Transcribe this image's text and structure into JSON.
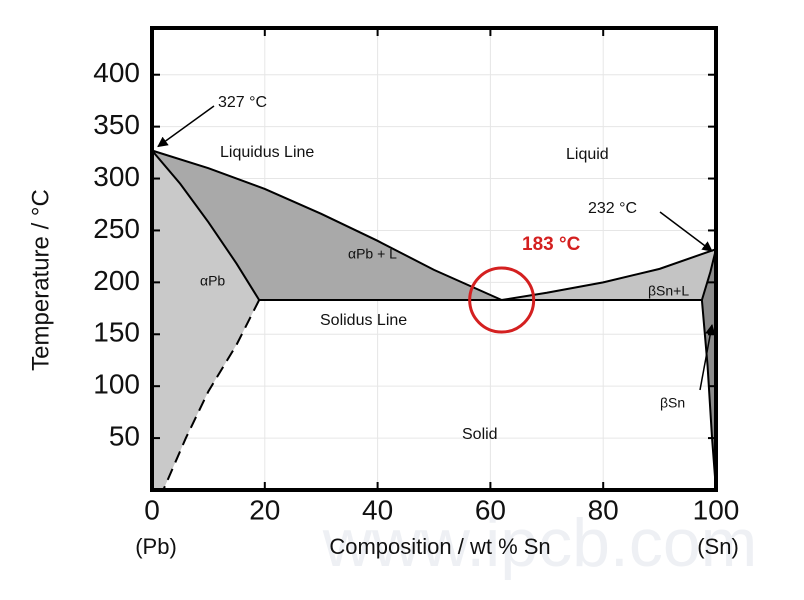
{
  "chart_data": {
    "type": "phase-diagram",
    "x_label": "Composition / wt % Sn",
    "y_label": "Temperature / °C",
    "x_end_labels": [
      "(Pb)",
      "(Sn)"
    ],
    "xlim": [
      0,
      100
    ],
    "xticks": [
      0,
      20,
      40,
      60,
      80,
      100
    ],
    "ylim": [
      0,
      445
    ],
    "yticks": [
      50,
      100,
      150,
      200,
      250,
      300,
      350,
      400
    ],
    "grid": true,
    "series": [
      {
        "color": "#000000",
        "style": "solid",
        "x": [
          0,
          10,
          20,
          30,
          40,
          50,
          62
        ],
        "values": [
          327,
          310,
          290,
          266,
          240,
          212,
          183
        ]
      },
      {
        "color": "#000000",
        "style": "solid",
        "x": [
          62,
          70,
          80,
          90,
          100
        ],
        "values": [
          183,
          190,
          200,
          213,
          232
        ]
      },
      {
        "color": "#000000",
        "style": "solid",
        "x": [
          0,
          5,
          10,
          15,
          19
        ],
        "values": [
          327,
          295,
          258,
          218,
          183
        ]
      },
      {
        "color": "#000000",
        "style": "dashed",
        "x": [
          19,
          15,
          10,
          6,
          2
        ],
        "values": [
          183,
          140,
          95,
          50,
          0
        ]
      },
      {
        "color": "#000000",
        "style": "solid",
        "x": [
          19,
          97.5
        ],
        "values": [
          183,
          183
        ]
      },
      {
        "color": "#000000",
        "style": "solid",
        "x": [
          97.5,
          99,
          100
        ],
        "values": [
          183,
          210,
          232
        ]
      },
      {
        "color": "#000000",
        "style": "solid",
        "x": [
          97.5,
          98.5,
          99.3,
          100
        ],
        "values": [
          183,
          120,
          50,
          0
        ]
      }
    ],
    "eutectic": {
      "x": 62,
      "value": 183,
      "color": "#d42020"
    },
    "annotations": [
      "327 °C",
      "Liquidus Line",
      "Liquid",
      "232 °C",
      "183 °C",
      "αPb",
      "αPb + L",
      "βSn+L",
      "Solidus Line",
      "βSn",
      "Solid"
    ],
    "watermark": "www.ipcb.com"
  }
}
